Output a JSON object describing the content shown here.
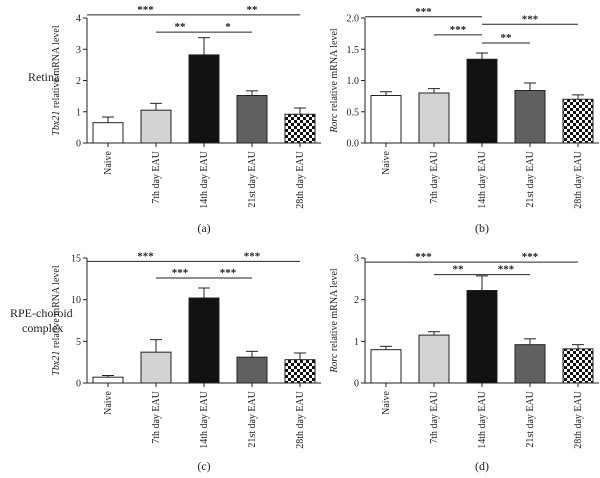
{
  "row_labels": [
    "Retina",
    "RPE-choroid",
    "complex"
  ],
  "chart_data": [
    {
      "type": "bar",
      "panel": "(a)",
      "categories": [
        "Naive",
        "7th day EAU",
        "14th day EAU",
        "21st day EAU",
        "28th day EAU"
      ],
      "values": [
        0.65,
        1.05,
        2.82,
        1.52,
        0.92
      ],
      "errors": [
        0.18,
        0.22,
        0.55,
        0.15,
        0.2
      ],
      "ylabel_italic": "Tbx21",
      "ylabel_rest": " relative mRNA level",
      "ylim": [
        0,
        4
      ],
      "yticks": [
        "0",
        "1",
        "2",
        "3",
        "4"
      ],
      "significance": [
        {
          "from": 0,
          "to": 2,
          "label": "***",
          "level": 4.1
        },
        {
          "from": 2,
          "to": 4,
          "label": "**",
          "level": 4.1
        },
        {
          "from": 1,
          "to": 2,
          "label": "**",
          "level": 3.55
        },
        {
          "from": 2,
          "to": 3,
          "label": "*",
          "level": 3.55
        }
      ]
    },
    {
      "type": "bar",
      "panel": "(b)",
      "categories": [
        "Naive",
        "7th day EAU",
        "14th day EAU",
        "21st day EAU",
        "28th day EAU"
      ],
      "values": [
        0.76,
        0.8,
        1.34,
        0.84,
        0.7
      ],
      "errors": [
        0.06,
        0.07,
        0.1,
        0.12,
        0.07
      ],
      "ylabel_italic": "Rorc",
      "ylabel_rest": " relative mRNA level",
      "ylim": [
        0,
        2.0
      ],
      "yticks": [
        "0.0",
        "0.5",
        "1.0",
        "1.5",
        "2.0"
      ],
      "significance": [
        {
          "from": 0,
          "to": 2,
          "label": "***",
          "level": 2.02
        },
        {
          "from": 2,
          "to": 4,
          "label": "***",
          "level": 1.9
        },
        {
          "from": 1,
          "to": 2,
          "label": "***",
          "level": 1.73
        },
        {
          "from": 2,
          "to": 3,
          "label": "**",
          "level": 1.6
        }
      ]
    },
    {
      "type": "bar",
      "panel": "(c)",
      "categories": [
        "Naive",
        "7th day EAU",
        "14th day EAU",
        "21st day EAU",
        "28th day EAU"
      ],
      "values": [
        0.7,
        3.7,
        10.2,
        3.1,
        2.8
      ],
      "errors": [
        0.2,
        1.5,
        1.2,
        0.7,
        0.8
      ],
      "ylabel_italic": "Tbx21",
      "ylabel_rest": " relative mRNA level",
      "ylim": [
        0,
        15
      ],
      "yticks": [
        "0",
        "5",
        "10",
        "15"
      ],
      "significance": [
        {
          "from": 0,
          "to": 2,
          "label": "***",
          "level": 14.6
        },
        {
          "from": 2,
          "to": 4,
          "label": "***",
          "level": 14.6
        },
        {
          "from": 1,
          "to": 2,
          "label": "***",
          "level": 12.6
        },
        {
          "from": 2,
          "to": 3,
          "label": "***",
          "level": 12.6
        }
      ]
    },
    {
      "type": "bar",
      "panel": "(d)",
      "categories": [
        "Naive",
        "7th day EAU",
        "14th day EAU",
        "21st day EAU",
        "28th day EAU"
      ],
      "values": [
        0.8,
        1.15,
        2.22,
        0.92,
        0.82
      ],
      "errors": [
        0.08,
        0.08,
        0.35,
        0.14,
        0.1
      ],
      "ylabel_italic": "Rorc",
      "ylabel_rest": " relative mRNA level",
      "ylim": [
        0,
        3
      ],
      "yticks": [
        "0",
        "1",
        "2",
        "3"
      ],
      "significance": [
        {
          "from": 0,
          "to": 2,
          "label": "***",
          "level": 2.9
        },
        {
          "from": 2,
          "to": 4,
          "label": "***",
          "level": 2.9
        },
        {
          "from": 1,
          "to": 2,
          "label": "**",
          "level": 2.6
        },
        {
          "from": 2,
          "to": 3,
          "label": "***",
          "level": 2.6
        }
      ]
    }
  ],
  "colors": {
    "bars": [
      "#ffffff",
      "#d3d3d3",
      "#111111",
      "#606060",
      "checker"
    ],
    "axis": "#222222"
  }
}
